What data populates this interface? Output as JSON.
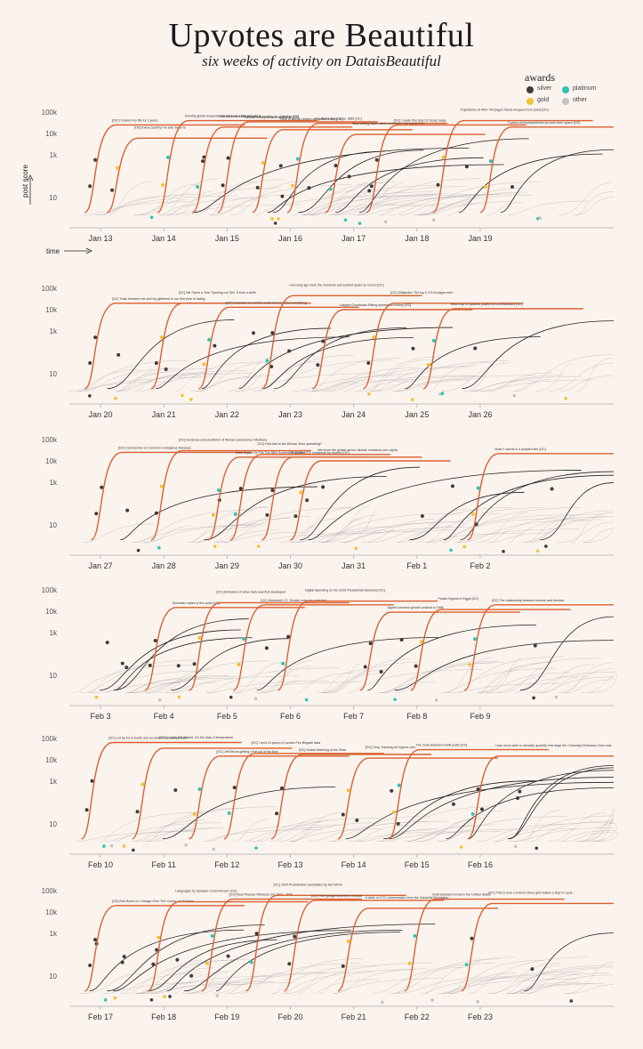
{
  "header": {
    "title": "Upvotes are Beautiful",
    "subtitle": "six weeks of activity on DataisBeautiful"
  },
  "legend": {
    "title": "awards",
    "items": [
      {
        "label": "silver",
        "color": "#3c3c3c"
      },
      {
        "label": "platinum",
        "color": "#2ec4b6"
      },
      {
        "label": "gold",
        "color": "#f2c230"
      },
      {
        "label": "other",
        "color": "#c4c4c4"
      }
    ]
  },
  "axis_notes": {
    "y": "post score",
    "x": "time"
  },
  "colors": {
    "highlight": "#d9602f",
    "normal": "#222222",
    "background_lines": "#9a9a9a",
    "axis": "#bdbdbd"
  },
  "chart_data": {
    "type": "line",
    "yscale": "log",
    "ylim": [
      1,
      100000
    ],
    "yticks": [
      "100k",
      "10k",
      "1k",
      "10"
    ],
    "rows": [
      {
        "days": [
          "Jan 13",
          "Jan 14",
          "Jan 15",
          "Jan 16",
          "Jan 17",
          "Jan 18",
          "Jan 19"
        ],
        "series": [
          {
            "start": 0.25,
            "peak": 25000,
            "label": "[OC] I tracked my life for 3 years"
          },
          {
            "start": 0.6,
            "peak": 6000,
            "label": "[OC] Every country I've ever been to"
          },
          {
            "start": 1.4,
            "peak": 40000,
            "label": "Monthly global temperatures between 1850 and 2019"
          },
          {
            "start": 1.95,
            "peak": 20000,
            "label": "Difficult environments spun to reading vs. objective [OC]"
          },
          {
            "start": 2.35,
            "peak": 35000,
            "label": "All time selling albums worldwide [OC]"
          },
          {
            "start": 2.9,
            "peak": 15000,
            "label": "Price of Bitcoin plotted on 1 chart every [OC]"
          },
          {
            "start": 3.45,
            "peak": 30000,
            "label": "Avg World Temp since 1880 [OC]"
          },
          {
            "start": 4.05,
            "peak": 9000,
            "label": "Best-selling travel rated countries in the world [OC]"
          },
          {
            "start": 4.7,
            "peak": 25000,
            "label": "[OC] I made this chart of Scary maps"
          },
          {
            "start": 5.75,
            "peak": 40000,
            "label": "Trajectories of 400+ 4/4 pages Views dropped from posts [OC]"
          },
          {
            "start": 6.5,
            "peak": 20000,
            "label": "2 years of photosynthesis as seen from space [OC]"
          }
        ]
      },
      {
        "days": [
          "Jan 20",
          "Jan 21",
          "Jan 22",
          "Jan 23",
          "Jan 24",
          "Jan 25",
          "Jan 26"
        ],
        "series": [
          {
            "start": 0.25,
            "peak": 20000,
            "label": "[OC] Trails between me and my girlfriend in our first year of dating"
          },
          {
            "start": 1.3,
            "peak": 20000,
            "label": "[OC] We Spent a Year Tracking our Sex. It took a while"
          },
          {
            "start": 2.05,
            "peak": 13000,
            "label": "[OC] I traveled around the world and recorded everything"
          },
          {
            "start": 3.05,
            "peak": 45000,
            "label": "How long ago were the moments and earliest years on record [OC]"
          },
          {
            "start": 3.85,
            "peak": 10000,
            "label": "Largest Goodreads Rating systems in history [OC]"
          },
          {
            "start": 4.65,
            "peak": 20000,
            "label": "[OC] Wikipedia: The top 0.1% of pages earn"
          },
          {
            "start": 5.6,
            "peak": 11000,
            "label": "Heat map of squares played on a chessboard [OC]"
          }
        ]
      },
      {
        "days": [
          "Jan 27",
          "Jan 28",
          "Jan 29",
          "Jan 30",
          "Jan 31",
          "Feb 1",
          "Feb 2"
        ],
        "series": [
          {
            "start": 0.35,
            "peak": 25000,
            "label": "[OC] Coronavirus vs Common contagious diseases"
          },
          {
            "start": 1.3,
            "peak": 30000,
            "label": "[OC] Incidence and prediction of Wuhan coronavirus infections"
          },
          {
            "start": 2.2,
            "peak": 15000,
            "label": "Kobe Bryant Vs The Top NBA Scorers Of All Time"
          },
          {
            "start": 2.55,
            "peak": 20000,
            "label": "[OC] How fast is the Wuhan Virus spreading?"
          },
          {
            "start": 3.05,
            "peak": 15000,
            "label": "Per capita CO2 emissions by country [OC]"
          },
          {
            "start": 3.5,
            "peak": 10000,
            "label": "We know the global carbon dioxide emissions per capita"
          },
          {
            "start": 6.3,
            "peak": 22000,
            "label": "Most F-words in a scripted film [OC]"
          }
        ]
      },
      {
        "days": [
          "Feb 3",
          "Feb 4",
          "Feb 5",
          "Feb 6",
          "Feb 7",
          "Feb 8",
          "Feb 9"
        ],
        "series": [
          {
            "start": 1.2,
            "peak": 15000,
            "label": "Semester males in the world [OC]"
          },
          {
            "start": 1.9,
            "peak": 25000,
            "label": "[OC] Animation of when dark was first developed"
          },
          {
            "start": 2.6,
            "peak": 20000,
            "label": "[OC] Historical U.S. Senate votes for president"
          },
          {
            "start": 3.3,
            "peak": 30000,
            "label": "Digital Spending on the 2020 Presidential Elections [OC]"
          },
          {
            "start": 4.6,
            "peak": 9000,
            "label": "Apple's revenue growth peaked in 1998"
          },
          {
            "start": 5.4,
            "peak": 12000,
            "label": "Peaks Highest in Egypt [OC]"
          },
          {
            "start": 6.25,
            "peak": 20000,
            "label": "[OC] The relationship between income and election"
          }
        ]
      },
      {
        "days": [
          "Feb 10",
          "Feb 11",
          "Feb 12",
          "Feb 13",
          "Feb 14",
          "Feb 15",
          "Feb 16"
        ],
        "series": [
          {
            "start": 0.2,
            "peak": 65000,
            "label": "[OC] Let try for a month and recorded what people said"
          },
          {
            "start": 1.0,
            "peak": 35000,
            "label": "[OC] I made this Market. It's the data of temperature"
          },
          {
            "start": 1.9,
            "peak": 15000,
            "label": "[OC] Jeff Bezos getting a flat out of his time"
          },
          {
            "start": 2.45,
            "peak": 20000,
            "label": "[OC] I sent 10 years of London Fire Brigade data"
          },
          {
            "start": 3.2,
            "peak": 18000,
            "label": "[OC] Global Warming of the Seas"
          },
          {
            "start": 4.25,
            "peak": 12000,
            "label": "[OC] Ozzy Tracking all regions cast"
          },
          {
            "start": 5.05,
            "peak": 30000,
            "label": "The most awarded reddit posts [OC]"
          },
          {
            "start": 6.3,
            "peak": 15000,
            "label": "I was never able to mentally quantify how large the Chernobyl Exclusion Zone was"
          }
        ]
      },
      {
        "days": [
          "Feb 17",
          "Feb 18",
          "Feb 19",
          "Feb 20",
          "Feb 21",
          "Feb 22",
          "Feb 23"
        ],
        "series": [
          {
            "start": 0.25,
            "peak": 20000,
            "label": "[OC] Bob Ross's in Chicago Over The Course of 20 Years"
          },
          {
            "start": 1.25,
            "peak": 30000,
            "label": "Languages by Speaker Count All Lyric [OC]"
          },
          {
            "start": 2.1,
            "peak": 40000,
            "label": "[OC] Most Popular Windows OS 2003 - 2020"
          },
          {
            "start": 2.8,
            "peak": 60000,
            "label": "[OC] 2020 Presidential Candidates by Net Worth"
          },
          {
            "start": 3.4,
            "peak": 35000,
            "label": "[OC] Your google searches Canada"
          },
          {
            "start": 4.25,
            "peak": 15000,
            "label": "A table of CO2 concentration from the Industrial Revolution"
          },
          {
            "start": 5.3,
            "peak": 40000,
            "label": "Youth Beloved trends in the United States"
          },
          {
            "start": 6.2,
            "peak": 25000,
            "label": "[OC] This is how London's street grid makes a stop to cycle"
          }
        ]
      }
    ]
  }
}
